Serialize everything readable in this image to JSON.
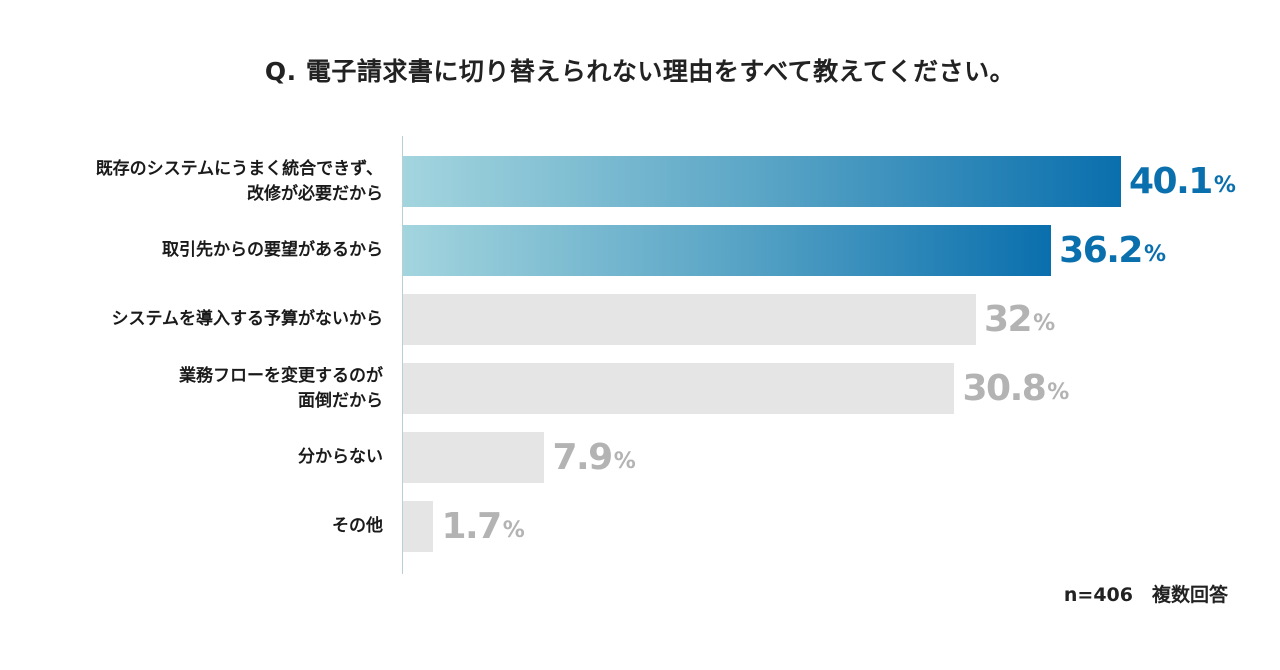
{
  "chart_data": {
    "type": "bar",
    "orientation": "horizontal",
    "title": "Q. 電子請求書に切り替えられない理由をすべて教えてください。",
    "categories": [
      [
        "既存のシステムにうまく統合できず、",
        "改修が必要だから"
      ],
      [
        "取引先からの要望があるから"
      ],
      [
        "システムを導入する予算がないから"
      ],
      [
        "業務フローを変更するのが",
        "面倒だから"
      ],
      [
        "分からない"
      ],
      [
        "その他"
      ]
    ],
    "values": [
      40.1,
      36.2,
      32,
      30.8,
      7.9,
      1.7
    ],
    "value_labels": [
      "40.1",
      "36.2",
      "32",
      "30.8",
      "7.9",
      "1.7"
    ],
    "unit": "%",
    "highlighted": [
      true,
      true,
      false,
      false,
      false,
      false
    ],
    "xlim": [
      0,
      40.1
    ],
    "grid": false,
    "colors": {
      "highlight_start": "#a3d5de",
      "highlight_end": "#0a6fad",
      "normal": "#e5e5e5",
      "highlight_text": "#0a6fad",
      "normal_text": "#b3b3b3"
    }
  },
  "note": "n=406　複数回答"
}
